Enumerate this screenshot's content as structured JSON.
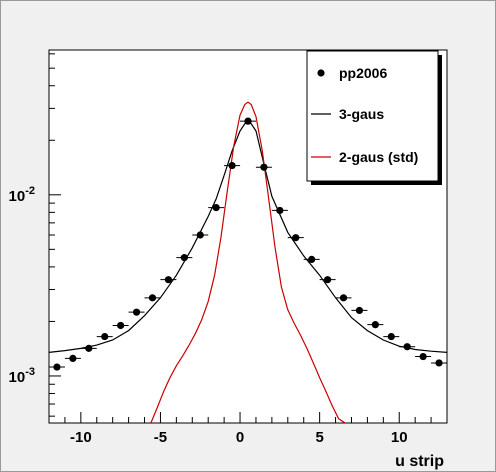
{
  "chart_data": {
    "type": "line",
    "xlabel": "u strip",
    "ylabel": "",
    "xlim": [
      -12,
      13
    ],
    "ylim": [
      0.00055,
      0.063
    ],
    "yscale": "log",
    "x_ticks": [
      -10,
      -5,
      0,
      5,
      10
    ],
    "x_tick_labels": [
      "-10",
      "-5",
      "0",
      "5",
      "10"
    ],
    "y_ticks": [
      0.001,
      0.01
    ],
    "y_tick_labels": [
      {
        "base": "10",
        "exp": "-3"
      },
      {
        "base": "10",
        "exp": "-2"
      }
    ],
    "grid": false,
    "legend_position": "top-right",
    "legend": [
      {
        "label": "pp2006",
        "marker": "circle",
        "color": "#000000"
      },
      {
        "label": "3-gaus",
        "marker": "line",
        "color": "#000000"
      },
      {
        "label": "2-gaus (std)",
        "marker": "line",
        "color": "#cc0000"
      }
    ],
    "series": [
      {
        "name": "pp2006",
        "kind": "points",
        "color": "#000000",
        "x": [
          -11.5,
          -10.5,
          -9.5,
          -8.5,
          -7.5,
          -6.5,
          -5.5,
          -4.5,
          -3.5,
          -2.5,
          -1.5,
          -0.5,
          0.5,
          1.5,
          2.5,
          3.5,
          4.5,
          5.5,
          6.5,
          7.5,
          8.5,
          9.5,
          10.5,
          11.5,
          12.5
        ],
        "y": [
          0.00112,
          0.00125,
          0.00142,
          0.00165,
          0.0019,
          0.00225,
          0.0027,
          0.0034,
          0.0045,
          0.006,
          0.0085,
          0.0145,
          0.0255,
          0.0142,
          0.0082,
          0.0058,
          0.0044,
          0.0034,
          0.0027,
          0.0023,
          0.00192,
          0.00165,
          0.00145,
          0.00128,
          0.00118
        ]
      },
      {
        "name": "3-gaus",
        "kind": "curve",
        "color": "#000000",
        "x": [
          -12,
          -11,
          -10,
          -9,
          -8,
          -7,
          -6,
          -5,
          -4,
          -3,
          -2,
          -1.5,
          -1,
          -0.5,
          0,
          0.5,
          1,
          1.5,
          2,
          3,
          4,
          5,
          6,
          7,
          8,
          9,
          10,
          11,
          12,
          13
        ],
        "y": [
          0.00135,
          0.00138,
          0.00142,
          0.00148,
          0.00158,
          0.00178,
          0.00215,
          0.0027,
          0.0036,
          0.0051,
          0.0076,
          0.0095,
          0.0128,
          0.0175,
          0.0225,
          0.0262,
          0.0225,
          0.0148,
          0.0098,
          0.0062,
          0.0046,
          0.0036,
          0.0027,
          0.0021,
          0.00178,
          0.00158,
          0.00146,
          0.0014,
          0.00137,
          0.00135
        ]
      },
      {
        "name": "2-gaus (std)",
        "kind": "curve",
        "color": "#cc0000",
        "x": [
          -5.6,
          -5.2,
          -4.8,
          -4.4,
          -4.0,
          -3.6,
          -3.2,
          -2.8,
          -2.4,
          -2.0,
          -1.6,
          -1.2,
          -0.8,
          -0.4,
          0.0,
          0.3,
          0.5,
          0.7,
          1.0,
          1.4,
          1.8,
          2.2,
          2.6,
          3.0,
          3.4,
          3.8,
          4.2,
          4.6,
          5.0,
          5.4,
          5.8,
          6.2,
          6.6
        ],
        "y": [
          0.00055,
          0.00067,
          0.00082,
          0.00098,
          0.00114,
          0.00129,
          0.00148,
          0.00172,
          0.00205,
          0.00258,
          0.0036,
          0.0058,
          0.0105,
          0.0185,
          0.0275,
          0.0315,
          0.0325,
          0.0315,
          0.027,
          0.0175,
          0.0095,
          0.0051,
          0.0031,
          0.00232,
          0.00195,
          0.00168,
          0.00142,
          0.00118,
          0.00098,
          0.00082,
          0.00068,
          0.00058,
          0.00055
        ]
      }
    ]
  }
}
